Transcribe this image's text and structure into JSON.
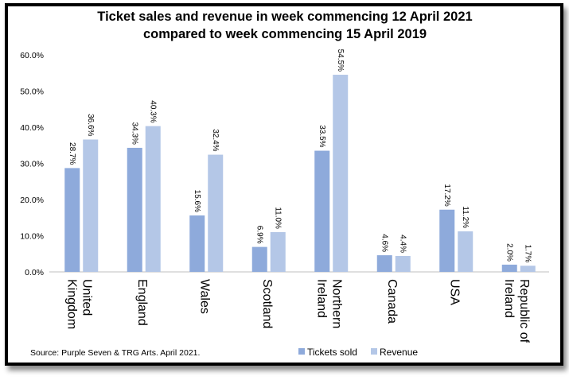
{
  "chart_data": {
    "type": "bar",
    "title": [
      "Ticket sales and revenue in week commencing 12 April 2021",
      "compared to week commencing 15 April 2019"
    ],
    "categories": [
      [
        "United",
        "Kingdom"
      ],
      [
        "England"
      ],
      [
        "Wales"
      ],
      [
        "Scotland"
      ],
      [
        "Northern",
        "Ireland"
      ],
      [
        "Canada"
      ],
      [
        "USA"
      ],
      [
        "Republic of",
        "Ireland"
      ]
    ],
    "series": [
      {
        "name": "Tickets sold",
        "color": "#8eaadb",
        "values": [
          28.7,
          34.3,
          15.6,
          6.9,
          33.5,
          4.6,
          17.2,
          2.0
        ],
        "labels": [
          "28.7%",
          "34.3%",
          "15.6%",
          "6.9%",
          "33.5%",
          "4.6%",
          "17.2%",
          "2.0%"
        ]
      },
      {
        "name": "Revenue",
        "color": "#b4c7e7",
        "values": [
          36.6,
          40.3,
          32.4,
          11.0,
          54.5,
          4.4,
          11.2,
          1.7
        ],
        "labels": [
          "36.6%",
          "40.3%",
          "32.4%",
          "11.0%",
          "54.5%",
          "4.4%",
          "11.2%",
          "1.7%"
        ]
      }
    ],
    "ylim": [
      0,
      60
    ],
    "yticks": [
      "0.0%",
      "10.0%",
      "20.0%",
      "30.0%",
      "40.0%",
      "50.0%",
      "60.0%"
    ],
    "grid": false,
    "legend": "bottom",
    "source": "Source: Purple Seven & TRG Arts. April 2021."
  }
}
